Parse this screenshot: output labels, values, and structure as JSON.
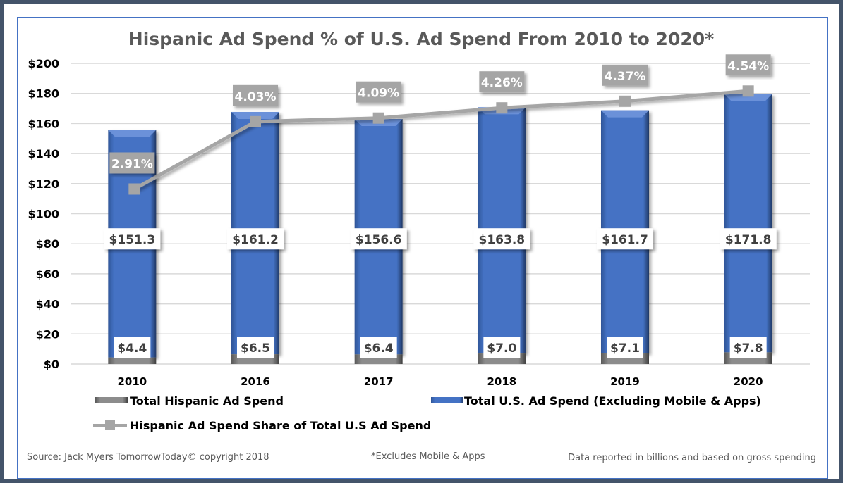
{
  "chart_data": {
    "type": "bar",
    "title": "Hispanic Ad Spend % of U.S. Ad Spend From 2010 to 2020*",
    "categories": [
      "2010",
      "2016",
      "2017",
      "2018",
      "2019",
      "2020"
    ],
    "stacked": true,
    "series": [
      {
        "name": "Total Hispanic Ad Spend",
        "type": "bar",
        "color": "#7f7f7f",
        "values": [
          4.4,
          6.5,
          6.4,
          7.0,
          7.1,
          7.8
        ],
        "labels": [
          "$4.4",
          "$6.5",
          "$6.4",
          "$7.0",
          "$7.1",
          "$7.8"
        ]
      },
      {
        "name": "Total U.S. Ad Spend (Excluding Mobile & Apps)",
        "type": "bar",
        "color": "#4472c4",
        "values": [
          151.3,
          161.2,
          156.6,
          163.8,
          161.7,
          171.8
        ],
        "labels": [
          "$151.3",
          "$161.2",
          "$156.6",
          "$163.8",
          "$161.7",
          "$171.8"
        ]
      },
      {
        "name": "Hispanic Ad Spend Share of Total U.S Ad Spend",
        "type": "line",
        "axis": "secondary",
        "color": "#a5a5a5",
        "values": [
          2.91,
          4.03,
          4.09,
          4.26,
          4.37,
          4.54
        ],
        "labels": [
          "2.91%",
          "4.03%",
          "4.09%",
          "4.26%",
          "4.37%",
          "4.54%"
        ]
      }
    ],
    "xlabel": "",
    "ylabel": "",
    "ylim": [
      0,
      200
    ],
    "y2lim": [
      0,
      5
    ],
    "yticks": [
      "$0",
      "$20",
      "$40",
      "$60",
      "$80",
      "$100",
      "$120",
      "$140",
      "$160",
      "$180",
      "$200"
    ],
    "grid": true,
    "legend": "bottom"
  },
  "footer": {
    "source": "Source: Jack Myers TomorrowToday© copyright 2018",
    "note": "*Excludes Mobile & Apps",
    "units": "Data reported in billions and based on gross spending"
  }
}
